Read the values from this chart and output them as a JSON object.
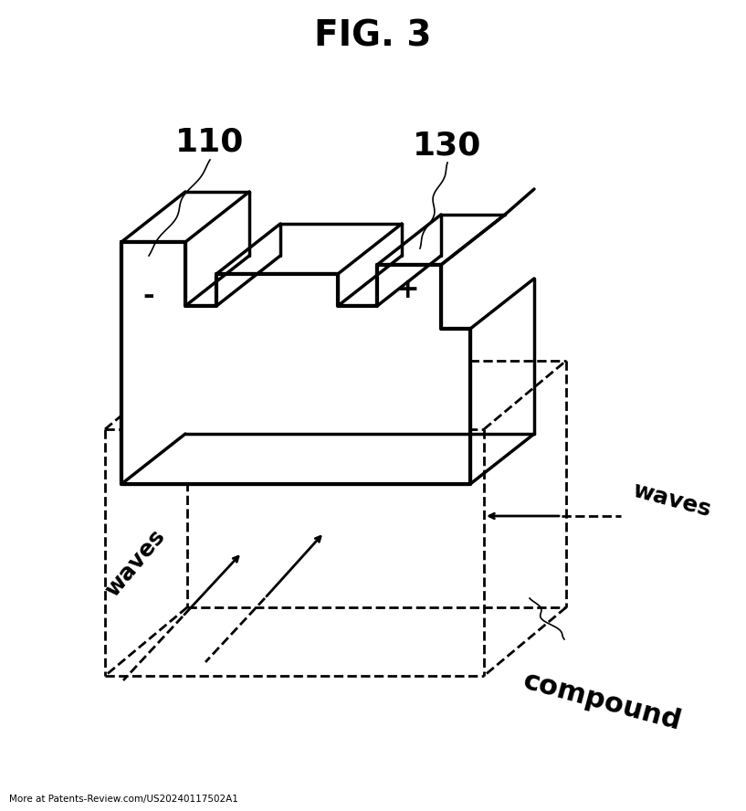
{
  "title": "FIG. 3",
  "title_fontsize": 28,
  "background_color": "#ffffff",
  "label_110": "110",
  "label_130": "130",
  "label_minus": "-",
  "label_plus": "+",
  "label_waves1": "waves",
  "label_waves2": "waves",
  "label_compound": "compound",
  "footnote": "More at Patents-Review.com/US20240117502A1",
  "lw": 2.5,
  "dashed_lw": 2.0
}
